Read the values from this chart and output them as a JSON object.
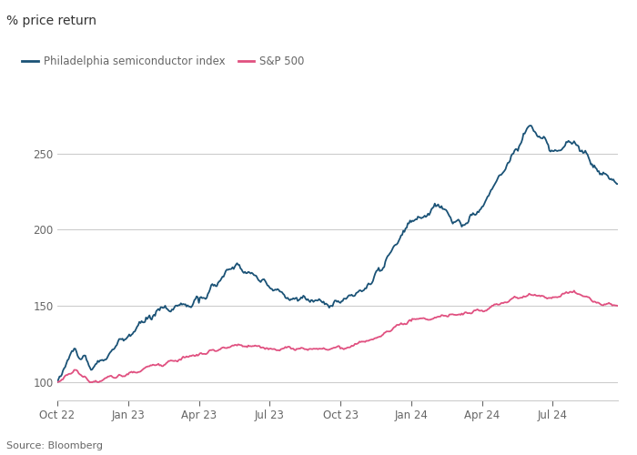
{
  "title": "% price return",
  "source": "Source: Bloomberg",
  "legend": [
    {
      "label": "Philadelphia semiconductor index",
      "color": "#1a5276"
    },
    {
      "label": "S&P 500",
      "color": "#e05080"
    }
  ],
  "x_tick_labels": [
    "Oct 22",
    "Jan 23",
    "Apr 23",
    "Jul 23",
    "Oct 23",
    "Jan 24",
    "Apr 24",
    "Jul 24"
  ],
  "ylim": [
    88,
    285
  ],
  "yticks": [
    100,
    150,
    200,
    250
  ],
  "background_color": "#ffffff",
  "text_color": "#666666",
  "grid_color": "#cccccc",
  "title_color": "#333333",
  "n_points": 500
}
